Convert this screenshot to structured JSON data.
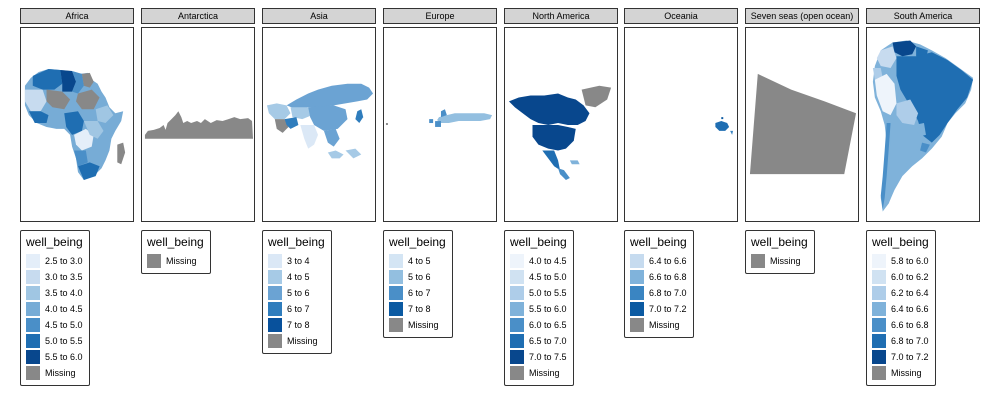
{
  "legend_title": "well_being",
  "colors": {
    "missing": "#888888",
    "c1": "#e4eef9",
    "c2": "#c7dbef",
    "c3": "#a0c6e3",
    "c4": "#77acd6",
    "c5": "#4a8fc8",
    "c6": "#1f6eb2",
    "c7": "#08478d"
  },
  "facets": [
    {
      "name": "Africa",
      "shape": "africa-shape",
      "legend": [
        {
          "label": "2.5 to 3.0",
          "color": "#e4eef9"
        },
        {
          "label": "3.0 to 3.5",
          "color": "#c7dbef"
        },
        {
          "label": "3.5 to 4.0",
          "color": "#a0c6e3"
        },
        {
          "label": "4.0 to 4.5",
          "color": "#77acd6"
        },
        {
          "label": "4.5 to 5.0",
          "color": "#4a8fc8"
        },
        {
          "label": "5.0 to 5.5",
          "color": "#1f6eb2"
        },
        {
          "label": "5.5 to 6.0",
          "color": "#08478d"
        },
        {
          "label": "Missing",
          "color": "#888888"
        }
      ]
    },
    {
      "name": "Antarctica",
      "shape": "antarctica-shape",
      "legend": [
        {
          "label": "Missing",
          "color": "#888888"
        }
      ]
    },
    {
      "name": "Asia",
      "shape": "asia-shape",
      "legend": [
        {
          "label": "3 to 4",
          "color": "#dbe8f6"
        },
        {
          "label": "4 to 5",
          "color": "#a6cae6"
        },
        {
          "label": "5 to 6",
          "color": "#6ba3d3"
        },
        {
          "label": "6 to 7",
          "color": "#2f7dbd"
        },
        {
          "label": "7 to 8",
          "color": "#08519c"
        },
        {
          "label": "Missing",
          "color": "#888888"
        }
      ]
    },
    {
      "name": "Europe",
      "shape": "europe-shape",
      "legend": [
        {
          "label": "4 to 5",
          "color": "#d4e5f4"
        },
        {
          "label": "5 to 6",
          "color": "#93bfe0"
        },
        {
          "label": "6 to 7",
          "color": "#4a8fc8"
        },
        {
          "label": "7 to 8",
          "color": "#0b5aa2"
        },
        {
          "label": "Missing",
          "color": "#888888"
        }
      ]
    },
    {
      "name": "North America",
      "shape": "north-america-shape",
      "legend": [
        {
          "label": "4.0 to 4.5",
          "color": "#eef4fb"
        },
        {
          "label": "4.5 to 5.0",
          "color": "#d0e2f2"
        },
        {
          "label": "5.0 to 5.5",
          "color": "#aecde9"
        },
        {
          "label": "5.5 to 6.0",
          "color": "#7fb2da"
        },
        {
          "label": "6.0 to 6.5",
          "color": "#4a8fc8"
        },
        {
          "label": "6.5 to 7.0",
          "color": "#1f6eb2"
        },
        {
          "label": "7.0 to 7.5",
          "color": "#08478d"
        },
        {
          "label": "Missing",
          "color": "#888888"
        }
      ]
    },
    {
      "name": "Oceania",
      "shape": "oceania-shape",
      "legend": [
        {
          "label": "6.4 to 6.6",
          "color": "#c6dbef"
        },
        {
          "label": "6.6 to 6.8",
          "color": "#80b3db"
        },
        {
          "label": "6.8 to 7.0",
          "color": "#3a85c2"
        },
        {
          "label": "7.0 to 7.2",
          "color": "#0b5aa2"
        },
        {
          "label": "Missing",
          "color": "#888888"
        }
      ]
    },
    {
      "name": "Seven seas (open ocean)",
      "shape": "seven-seas-shape",
      "legend": [
        {
          "label": "Missing",
          "color": "#888888"
        }
      ]
    },
    {
      "name": "South America",
      "shape": "south-america-shape",
      "legend": [
        {
          "label": "5.8 to 6.0",
          "color": "#eef4fb"
        },
        {
          "label": "6.0 to 6.2",
          "color": "#d0e2f2"
        },
        {
          "label": "6.2 to 6.4",
          "color": "#aecde9"
        },
        {
          "label": "6.4 to 6.6",
          "color": "#7fb2da"
        },
        {
          "label": "6.6 to 6.8",
          "color": "#4a8fc8"
        },
        {
          "label": "6.8 to 7.0",
          "color": "#1f6eb2"
        },
        {
          "label": "7.0 to 7.2",
          "color": "#08478d"
        },
        {
          "label": "Missing",
          "color": "#888888"
        }
      ]
    }
  ]
}
